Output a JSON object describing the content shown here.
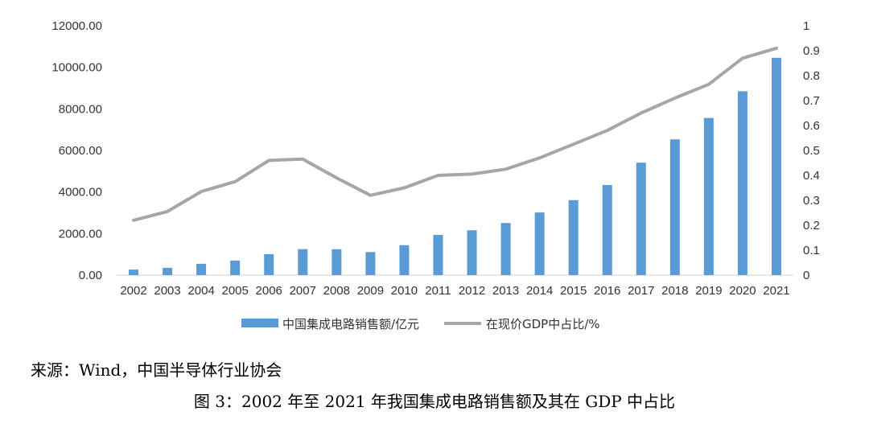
{
  "chart_data": {
    "type": "bar+line",
    "categories": [
      "2002",
      "2003",
      "2004",
      "2005",
      "2006",
      "2007",
      "2008",
      "2009",
      "2010",
      "2011",
      "2012",
      "2013",
      "2014",
      "2015",
      "2016",
      "2017",
      "2018",
      "2019",
      "2020",
      "2021"
    ],
    "series": [
      {
        "name": "中国集成电路销售额/亿元",
        "type": "bar",
        "axis": "left",
        "color": "#5b9bd5",
        "values": [
          268,
          351,
          545,
          703,
          1006,
          1251,
          1246,
          1109,
          1440,
          1934,
          2159,
          2509,
          3015,
          3610,
          4336,
          5411,
          6532,
          7562,
          8848,
          10458
        ]
      },
      {
        "name": "在现价GDP中占比/%",
        "type": "line",
        "axis": "right",
        "color": "#a6a6a6",
        "values": [
          0.22,
          0.255,
          0.335,
          0.375,
          0.46,
          0.465,
          0.39,
          0.32,
          0.35,
          0.4,
          0.405,
          0.425,
          0.47,
          0.525,
          0.58,
          0.65,
          0.71,
          0.765,
          0.87,
          0.91
        ]
      }
    ],
    "y_left": {
      "min": 0,
      "max": 12000,
      "ticks": [
        "0.00",
        "2000.00",
        "4000.00",
        "6000.00",
        "8000.00",
        "10000.00",
        "12000.00"
      ]
    },
    "y_right": {
      "min": 0,
      "max": 1,
      "ticks": [
        "0",
        "0.1",
        "0.2",
        "0.3",
        "0.4",
        "0.5",
        "0.6",
        "0.7",
        "0.8",
        "0.9",
        "1"
      ]
    },
    "legend_position": "bottom-center",
    "grid": false
  },
  "source_note": "来源：Wind，中国半导体行业协会",
  "caption": "图 3：2002 年至 2021 年我国集成电路销售额及其在 GDP 中占比"
}
